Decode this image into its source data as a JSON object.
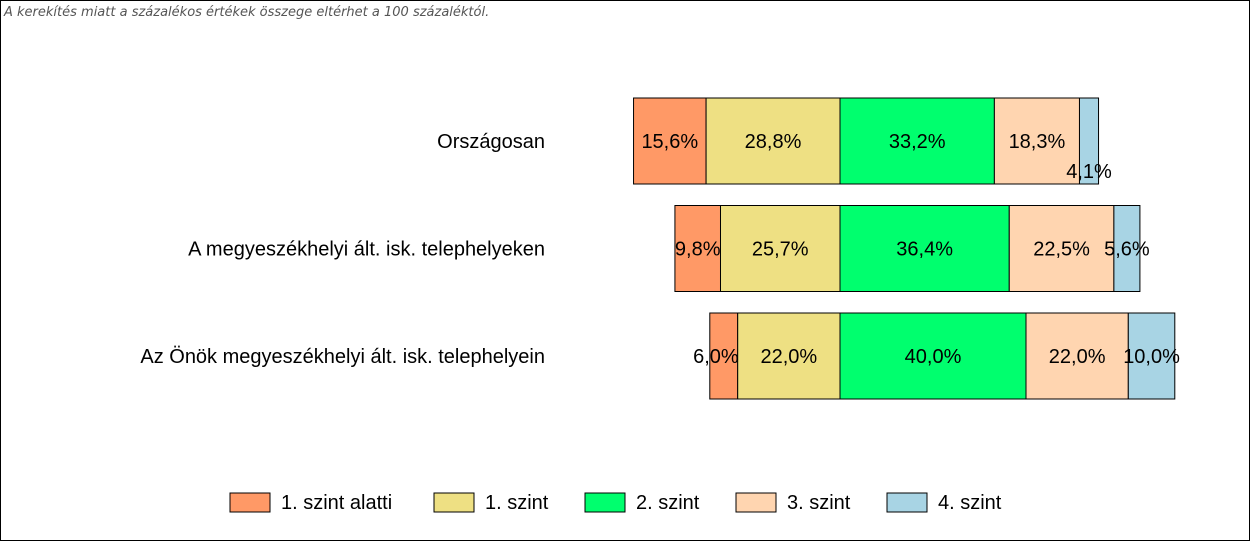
{
  "note": "A kerekítés miatt a  százalékos értékek összege eltérhet a 100 százaléktól.",
  "chart_data": {
    "type": "bar",
    "orientation": "horizontal",
    "stacked": true,
    "diverging": true,
    "categories": [
      "Országosan",
      "A megyeszékhelyi ált. isk. telephelyeken",
      "Az Önök megyeszékhelyi ált. isk. telephelyein"
    ],
    "series": [
      {
        "name": "1. szint alatti",
        "color": "#ff9966",
        "values": [
          15.6,
          9.8,
          6.0
        ],
        "labels": [
          "15,6%",
          "9,8%",
          "6,0%"
        ]
      },
      {
        "name": "1. szint",
        "color": "#eee083",
        "values": [
          28.8,
          25.7,
          22.0
        ],
        "labels": [
          "28,8%",
          "25,7%",
          "22,0%"
        ]
      },
      {
        "name": "2. szint",
        "color": "#00ff6e",
        "values": [
          33.2,
          36.4,
          40.0
        ],
        "labels": [
          "33,2%",
          "36,4%",
          "40,0%"
        ]
      },
      {
        "name": "3. szint",
        "color": "#ffd5b0",
        "values": [
          18.3,
          22.5,
          22.0
        ],
        "labels": [
          "18,3%",
          "22,5%",
          "22,0%"
        ]
      },
      {
        "name": "4. szint",
        "color": "#a8d4e4",
        "values": [
          4.1,
          5.6,
          10.0
        ],
        "labels": [
          "4,1%",
          "5,6%",
          "10,0%"
        ]
      }
    ],
    "legend_position": "bottom",
    "grid": false
  }
}
